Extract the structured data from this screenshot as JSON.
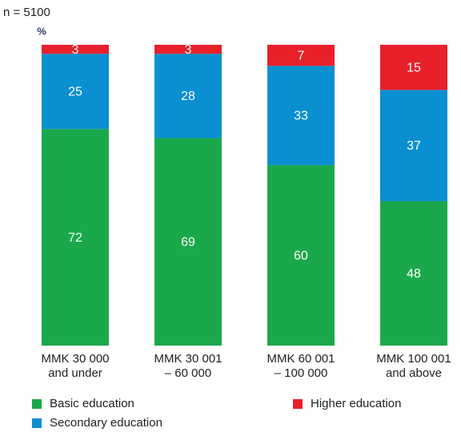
{
  "chart_data": {
    "type": "stacked-bar",
    "title": "n = 5100",
    "y_label": "%",
    "categories": [
      "MMK 30 000\nand under",
      "MMK 30 001\n– 60 000",
      "MMK 60 001\n– 100 000",
      "MMK 100 001\nand above"
    ],
    "series": [
      {
        "name": "Basic education",
        "color": "#1ba84b",
        "values": [
          72,
          69,
          60,
          48
        ]
      },
      {
        "name": "Secondary education",
        "color": "#0a8fd0",
        "values": [
          25,
          28,
          33,
          37
        ]
      },
      {
        "name": "Higher education",
        "color": "#e8202a",
        "values": [
          3,
          3,
          7,
          15
        ]
      }
    ],
    "ylim": [
      0,
      100
    ]
  }
}
